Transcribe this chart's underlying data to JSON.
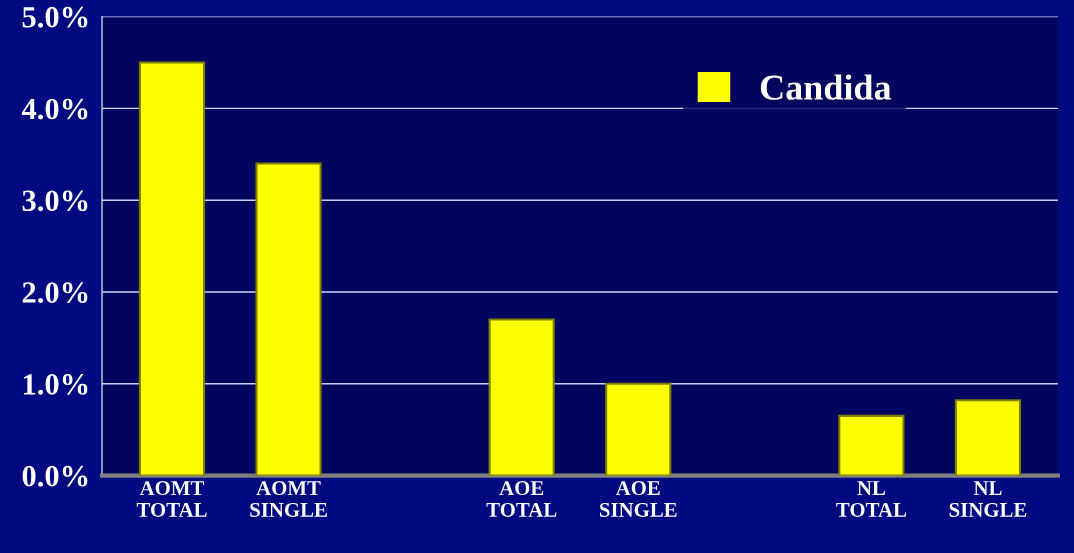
{
  "chart_data": {
    "type": "bar",
    "categories": [
      "AOMT\nTOTAL",
      "AOMT\nSINGLE",
      null,
      "AOE\nTOTAL",
      "AOE\nSINGLE",
      null,
      "NL\nTOTAL",
      "NL\nSINGLE"
    ],
    "series": [
      {
        "name": "Candida",
        "color": "#ffff00",
        "values": [
          4.5,
          3.4,
          null,
          1.7,
          1.0,
          null,
          0.65,
          0.82
        ]
      }
    ],
    "ylim": [
      0,
      5
    ],
    "yticks": [
      {
        "value": 0,
        "label": "0.0%"
      },
      {
        "value": 1,
        "label": "1.0%"
      },
      {
        "value": 2,
        "label": "2.0%"
      },
      {
        "value": 3,
        "label": "3.0%"
      },
      {
        "value": 4,
        "label": "4.0%"
      },
      {
        "value": 5,
        "label": "5.0%"
      }
    ],
    "grid": "y",
    "legend": "top right"
  }
}
